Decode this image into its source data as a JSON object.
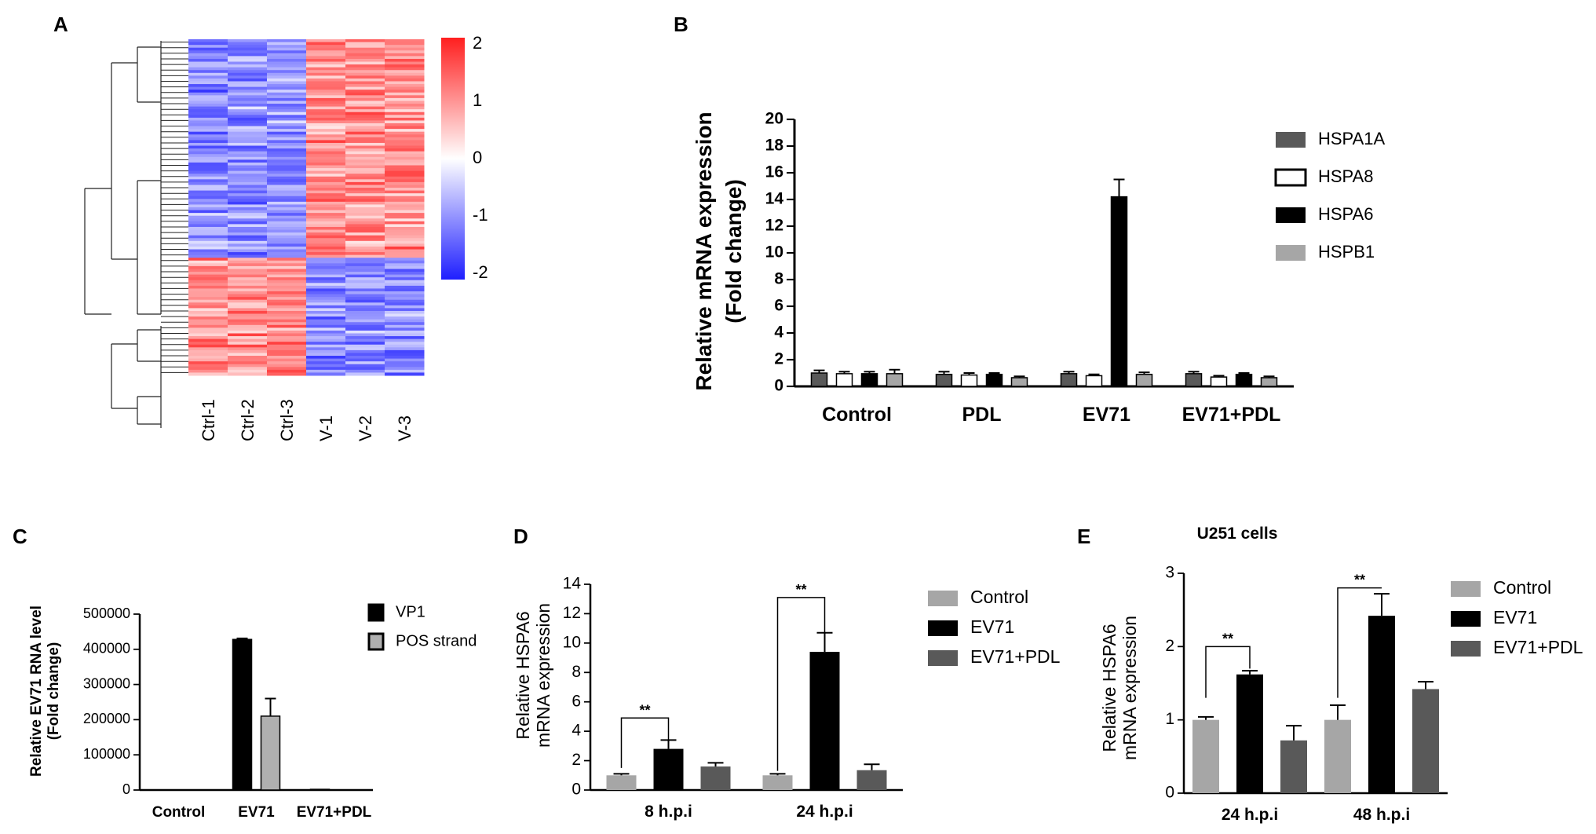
{
  "colors": {
    "hsp_a1a": "#595959",
    "hsp_a8": "#ffffff",
    "hsp_a6": "#000000",
    "hsp_b1": "#a6a6a6",
    "control": "#a6a6a6",
    "ev71": "#000000",
    "ev71_pdl": "#595959",
    "vp1": "#000000",
    "pos": "#b0b0b0",
    "heat_low": "#1f1fff",
    "heat_mid": "#ffffff",
    "heat_high": "#ff1f1f"
  },
  "panels": {
    "A": {
      "letter": "A",
      "heatmap": {
        "columns": [
          "Ctrl-1",
          "Ctrl-2",
          "Ctrl-3",
          "V-1",
          "V-2",
          "V-3"
        ],
        "row_count": 120,
        "colorbar_ticks": [
          "2",
          "1",
          "0",
          "-1",
          "-2"
        ]
      }
    },
    "B": {
      "letter": "B",
      "ylabel_line1": "Relative mRNA expression",
      "ylabel_line2": "(Fold change)",
      "legend": [
        "HSPA1A",
        "HSPA8",
        "HSPA6",
        "HSPB1"
      ]
    },
    "C": {
      "letter": "C",
      "ylabel_line1": "Relative EV71 RNA level",
      "ylabel_line2": "(Fold change)",
      "legend": [
        "VP1",
        "POS strand"
      ]
    },
    "D": {
      "letter": "D",
      "ylabel_line1": "Relative HSPA6",
      "ylabel_line2": "mRNA expression",
      "legend": [
        "Control",
        "EV71",
        "EV71+PDL"
      ],
      "sig": [
        "**",
        "**"
      ]
    },
    "E": {
      "letter": "E",
      "title": "U251 cells",
      "ylabel_line1": "Relative HSPA6",
      "ylabel_line2": "mRNA expression",
      "legend": [
        "Control",
        "EV71",
        "EV71+PDL"
      ],
      "sig": [
        "**",
        "**"
      ]
    }
  },
  "chart_data": [
    {
      "panel": "A",
      "type": "heatmap",
      "columns": [
        "Ctrl-1",
        "Ctrl-2",
        "Ctrl-3",
        "V-1",
        "V-2",
        "V-3"
      ],
      "rows": 120,
      "color_range": [
        -2,
        2
      ],
      "clusters": [
        {
          "rows": 78,
          "pattern": [
            -1,
            -1,
            -1,
            1,
            1,
            1
          ]
        },
        {
          "rows": 42,
          "pattern": [
            1,
            1,
            1,
            -1,
            -1,
            -1
          ]
        }
      ]
    },
    {
      "panel": "B",
      "type": "bar",
      "categories": [
        "Control",
        "PDL",
        "EV71",
        "EV71+PDL"
      ],
      "ylabel": "Relative mRNA expression (Fold change)",
      "ylim": [
        0,
        20
      ],
      "yticks": [
        0,
        2,
        4,
        6,
        8,
        10,
        12,
        14,
        16,
        18,
        20
      ],
      "series": [
        {
          "name": "HSPA1A",
          "values": [
            1.0,
            0.9,
            0.95,
            0.95
          ],
          "errors": [
            0.2,
            0.2,
            0.15,
            0.15
          ]
        },
        {
          "name": "HSPA8",
          "values": [
            0.95,
            0.85,
            0.8,
            0.7
          ],
          "errors": [
            0.15,
            0.15,
            0.1,
            0.1
          ]
        },
        {
          "name": "HSPA6",
          "values": [
            0.95,
            0.9,
            14.2,
            0.9
          ],
          "errors": [
            0.15,
            0.1,
            1.3,
            0.1
          ]
        },
        {
          "name": "HSPB1",
          "values": [
            0.95,
            0.65,
            0.9,
            0.65
          ],
          "errors": [
            0.3,
            0.1,
            0.15,
            0.1
          ]
        }
      ]
    },
    {
      "panel": "C",
      "type": "bar",
      "categories": [
        "Control",
        "EV71",
        "EV71+PDL"
      ],
      "ylabel": "Relative EV71 RNA level (Fold change)",
      "ylim": [
        0,
        500000
      ],
      "yticks": [
        0,
        100000,
        200000,
        300000,
        400000,
        500000
      ],
      "series": [
        {
          "name": "VP1",
          "values": [
            0,
            428000,
            2000
          ],
          "errors": [
            0,
            3000,
            0
          ]
        },
        {
          "name": "POS strand",
          "values": [
            0,
            210000,
            0
          ],
          "errors": [
            0,
            50000,
            0
          ]
        }
      ]
    },
    {
      "panel": "D",
      "type": "bar",
      "categories": [
        "8 h.p.i",
        "24 h.p.i"
      ],
      "ylabel": "Relative HSPA6 mRNA expression",
      "ylim": [
        0,
        14
      ],
      "yticks": [
        0,
        2,
        4,
        6,
        8,
        10,
        12,
        14
      ],
      "series": [
        {
          "name": "Control",
          "values": [
            1.0,
            1.0
          ],
          "errors": [
            0.1,
            0.1
          ]
        },
        {
          "name": "EV71",
          "values": [
            2.8,
            9.4
          ],
          "errors": [
            0.6,
            1.3
          ]
        },
        {
          "name": "EV71+PDL",
          "values": [
            1.6,
            1.35
          ],
          "errors": [
            0.25,
            0.4
          ]
        }
      ],
      "brackets": [
        {
          "category": 0,
          "label": "**",
          "left_to": 1.5,
          "right_to": 3.2,
          "top": 4.9
        },
        {
          "category": 1,
          "label": "**",
          "left_to": 1.3,
          "right_to": 10.6,
          "top": 13.1
        }
      ]
    },
    {
      "panel": "E",
      "type": "bar",
      "title": "U251 cells",
      "categories": [
        "24 h.p.i",
        "48 h.p.i"
      ],
      "ylabel": "Relative HSPA6 mRNA expression",
      "ylim": [
        0,
        3
      ],
      "yticks": [
        0,
        1,
        2,
        3
      ],
      "series": [
        {
          "name": "Control",
          "values": [
            1.0,
            1.0
          ],
          "errors": [
            0.04,
            0.2
          ]
        },
        {
          "name": "EV71",
          "values": [
            1.62,
            2.42
          ],
          "errors": [
            0.05,
            0.3
          ]
        },
        {
          "name": "EV71+PDL",
          "values": [
            0.72,
            1.42
          ],
          "errors": [
            0.2,
            0.1
          ]
        }
      ],
      "brackets": [
        {
          "category": 0,
          "label": "**",
          "left_to": 1.3,
          "right_to": 1.7,
          "top": 2.0
        },
        {
          "category": 1,
          "label": "**",
          "left_to": 1.3,
          "right_to": 2.8,
          "top": 2.8
        }
      ]
    }
  ]
}
